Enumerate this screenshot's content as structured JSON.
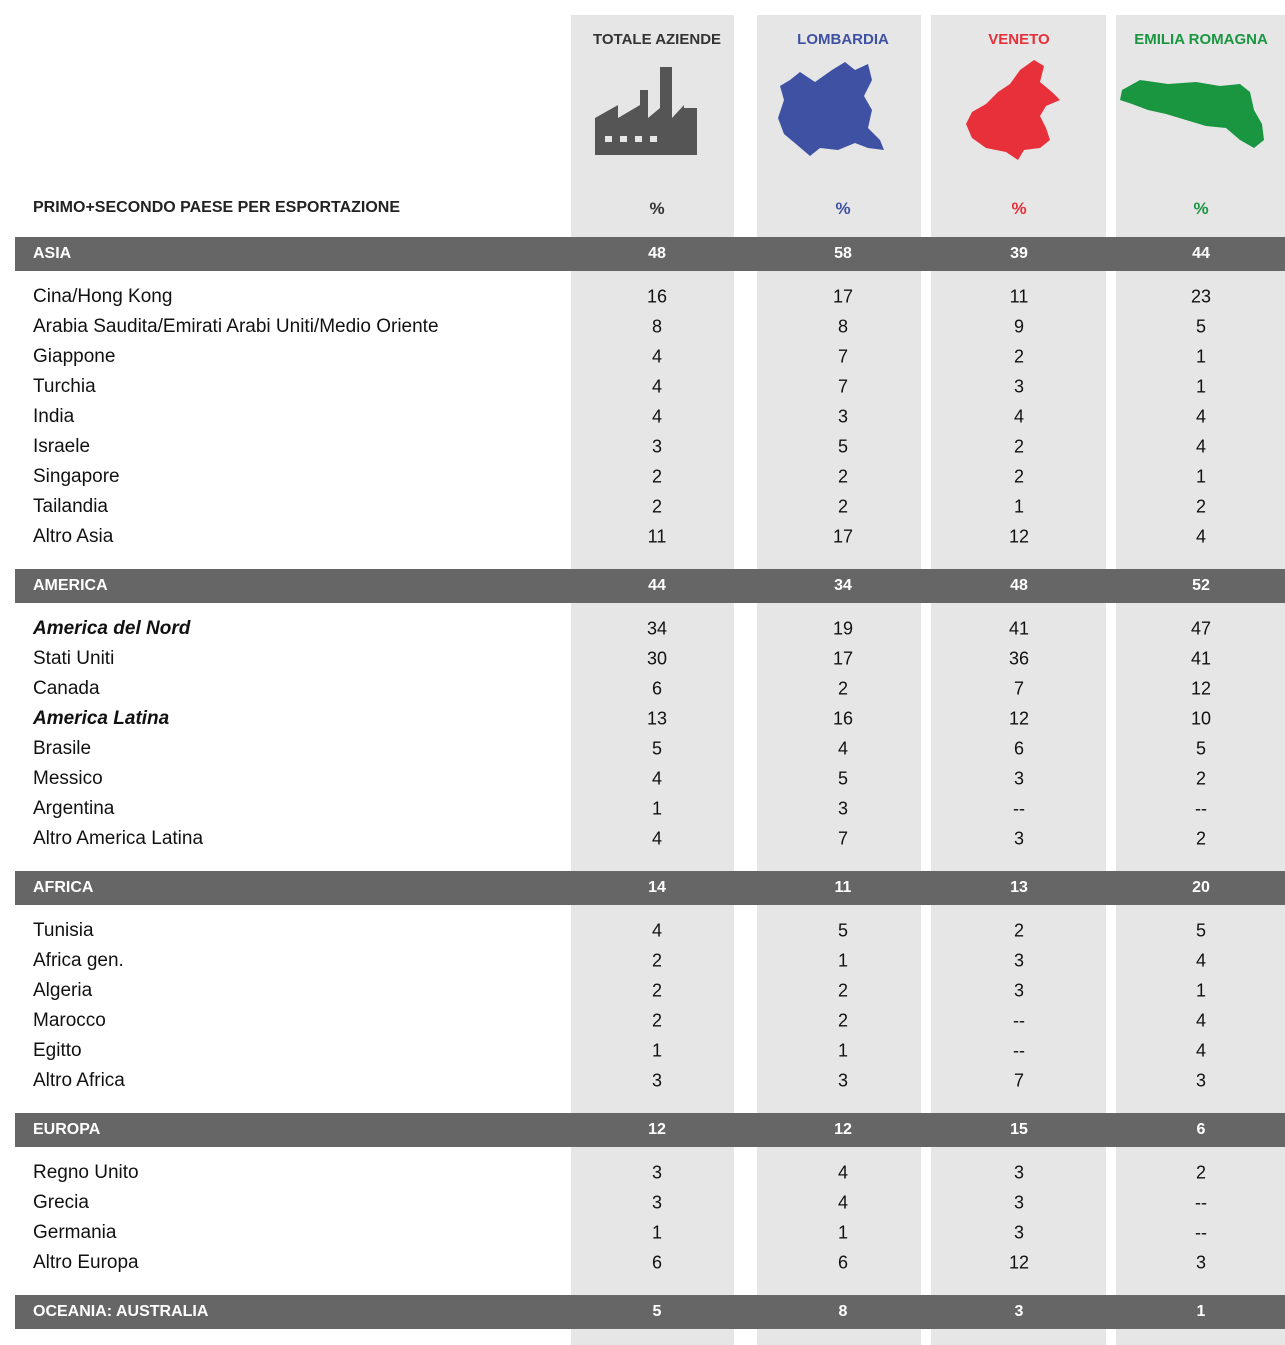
{
  "header": {
    "label": "PRIMO+SECONDO PAESE PER ESPORTAZIONE",
    "columns": [
      {
        "name": "TOTALE AZIENDE",
        "unit": "%",
        "color": "#333333"
      },
      {
        "name": "LOMBARDIA",
        "unit": "%",
        "color": "#3f51a3"
      },
      {
        "name": "VENETO",
        "unit": "%",
        "color": "#e8303a"
      },
      {
        "name": "EMILIA ROMAGNA",
        "unit": "%",
        "color": "#1a9641"
      }
    ]
  },
  "sections": [
    {
      "name": "ASIA",
      "values": [
        48,
        58,
        39,
        44
      ],
      "rows": [
        {
          "label": "Cina/Hong Kong",
          "values": [
            16,
            17,
            11,
            23
          ]
        },
        {
          "label": "Arabia Saudita/Emirati Arabi Uniti/Medio Oriente",
          "values": [
            8,
            8,
            9,
            5
          ]
        },
        {
          "label": "Giappone",
          "values": [
            4,
            7,
            2,
            1
          ]
        },
        {
          "label": "Turchia",
          "values": [
            4,
            7,
            3,
            1
          ]
        },
        {
          "label": "India",
          "values": [
            4,
            3,
            4,
            4
          ]
        },
        {
          "label": "Israele",
          "values": [
            3,
            5,
            2,
            4
          ]
        },
        {
          "label": "Singapore",
          "values": [
            2,
            2,
            2,
            1
          ]
        },
        {
          "label": "Tailandia",
          "values": [
            2,
            2,
            1,
            2
          ]
        },
        {
          "label": "Altro Asia",
          "values": [
            11,
            17,
            12,
            4
          ]
        }
      ]
    },
    {
      "name": "AMERICA",
      "values": [
        44,
        34,
        48,
        52
      ],
      "rows": [
        {
          "label": "America del Nord",
          "values": [
            34,
            19,
            41,
            47
          ],
          "style": "bold-italic"
        },
        {
          "label": "Stati Uniti",
          "values": [
            30,
            17,
            36,
            41
          ]
        },
        {
          "label": "Canada",
          "values": [
            6,
            2,
            7,
            12
          ]
        },
        {
          "label": "America Latina",
          "values": [
            13,
            16,
            12,
            10
          ],
          "style": "bold-italic"
        },
        {
          "label": "Brasile",
          "values": [
            5,
            4,
            6,
            5
          ]
        },
        {
          "label": "Messico",
          "values": [
            4,
            5,
            3,
            2
          ]
        },
        {
          "label": "Argentina",
          "values": [
            1,
            3,
            "--",
            "--"
          ]
        },
        {
          "label": "Altro America Latina",
          "values": [
            4,
            7,
            3,
            2
          ]
        }
      ]
    },
    {
      "name": "AFRICA",
      "values": [
        14,
        11,
        13,
        20
      ],
      "rows": [
        {
          "label": "Tunisia",
          "values": [
            4,
            5,
            2,
            5
          ]
        },
        {
          "label": "Africa gen.",
          "values": [
            2,
            1,
            3,
            4
          ]
        },
        {
          "label": "Algeria",
          "values": [
            2,
            2,
            3,
            1
          ]
        },
        {
          "label": "Marocco",
          "values": [
            2,
            2,
            "--",
            4
          ]
        },
        {
          "label": "Egitto",
          "values": [
            1,
            1,
            "--",
            4
          ]
        },
        {
          "label": "Altro Africa",
          "values": [
            3,
            3,
            7,
            3
          ]
        }
      ]
    },
    {
      "name": "EUROPA",
      "values": [
        12,
        12,
        15,
        6
      ],
      "rows": [
        {
          "label": "Regno Unito",
          "values": [
            3,
            4,
            3,
            2
          ]
        },
        {
          "label": "Grecia",
          "values": [
            3,
            4,
            3,
            "--"
          ]
        },
        {
          "label": "Germania",
          "values": [
            1,
            1,
            3,
            "--"
          ]
        },
        {
          "label": "Altro Europa",
          "values": [
            6,
            6,
            12,
            3
          ]
        }
      ]
    },
    {
      "name": "OCEANIA: AUSTRALIA",
      "values": [
        5,
        8,
        3,
        1
      ],
      "rows": []
    }
  ]
}
